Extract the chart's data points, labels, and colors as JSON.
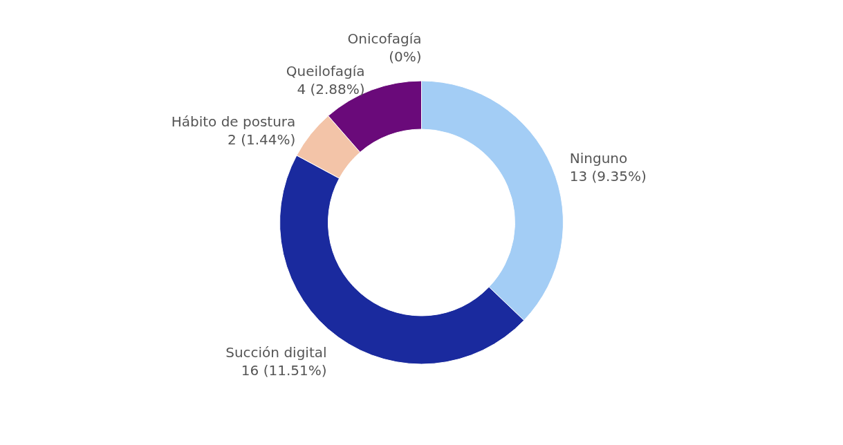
{
  "chart_data": {
    "type": "donut",
    "categories": [
      "Ninguno",
      "Succión digital",
      "Hábito de postura",
      "Queilofagía",
      "Onicofagía"
    ],
    "values": [
      13,
      16,
      2,
      4,
      0
    ],
    "value_labels": [
      "13 (9.35%)",
      "16 (11.51%)",
      "2 (1.44%)",
      "4 (2.88%)",
      "(0%)"
    ],
    "colors": [
      "#a3cdf5",
      "#1a2a9e",
      "#f3c4a8",
      "#6a0a7a",
      "#f0b0d8"
    ]
  }
}
